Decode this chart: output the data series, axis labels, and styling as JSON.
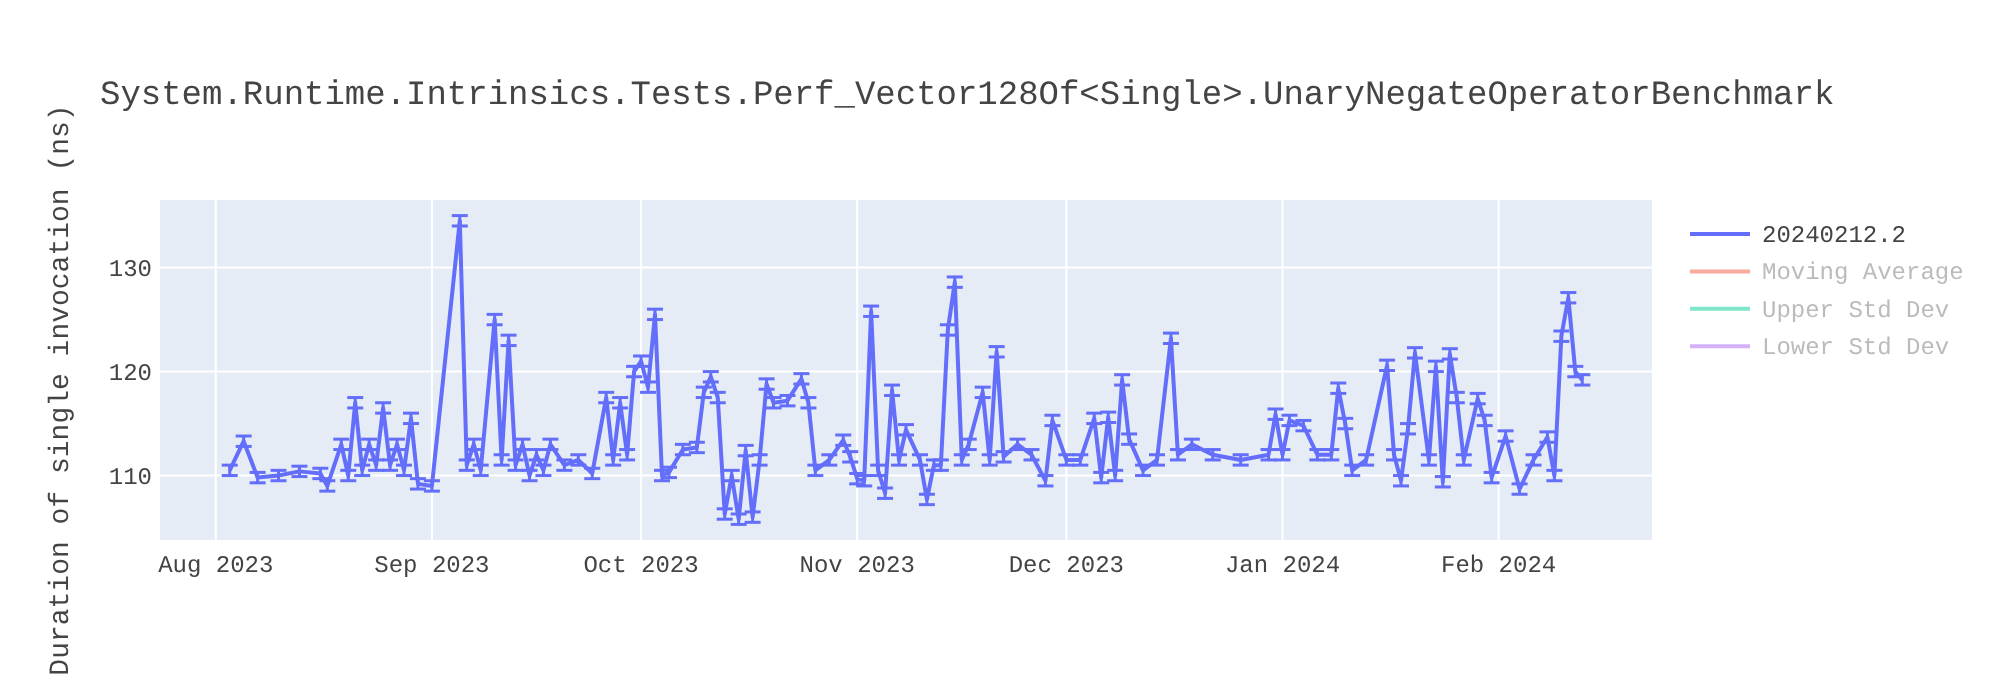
{
  "chart_data": {
    "type": "line",
    "title": "System.Runtime.Intrinsics.Tests.Perf_Vector128Of<Single>.UnaryNegateOperatorBenchmark",
    "ylabel": "Duration of single invocation (ns)",
    "series": [
      {
        "name": "20240212.2",
        "color": "#636efa",
        "x": [
          "2023-08-03",
          "2023-08-05",
          "2023-08-07",
          "2023-08-10",
          "2023-08-13",
          "2023-08-16",
          "2023-08-17",
          "2023-08-19",
          "2023-08-20",
          "2023-08-21",
          "2023-08-22",
          "2023-08-23",
          "2023-08-24",
          "2023-08-25",
          "2023-08-26",
          "2023-08-27",
          "2023-08-28",
          "2023-08-29",
          "2023-08-30",
          "2023-09-01",
          "2023-09-05",
          "2023-09-06",
          "2023-09-07",
          "2023-09-08",
          "2023-09-10",
          "2023-09-11",
          "2023-09-12",
          "2023-09-13",
          "2023-09-14",
          "2023-09-15",
          "2023-09-16",
          "2023-09-17",
          "2023-09-18",
          "2023-09-20",
          "2023-09-22",
          "2023-09-24",
          "2023-09-26",
          "2023-09-27",
          "2023-09-28",
          "2023-09-29",
          "2023-09-30",
          "2023-10-01",
          "2023-10-02",
          "2023-10-03",
          "2023-10-04",
          "2023-10-05",
          "2023-10-07",
          "2023-10-09",
          "2023-10-10",
          "2023-10-11",
          "2023-10-12",
          "2023-10-13",
          "2023-10-14",
          "2023-10-15",
          "2023-10-16",
          "2023-10-17",
          "2023-10-18",
          "2023-10-19",
          "2023-10-20",
          "2023-10-22",
          "2023-10-24",
          "2023-10-25",
          "2023-10-26",
          "2023-10-28",
          "2023-10-30",
          "2023-10-31",
          "2023-11-01",
          "2023-11-02",
          "2023-11-03",
          "2023-11-04",
          "2023-11-05",
          "2023-11-06",
          "2023-11-07",
          "2023-11-08",
          "2023-11-10",
          "2023-11-11",
          "2023-11-12",
          "2023-11-13",
          "2023-11-14",
          "2023-11-15",
          "2023-11-16",
          "2023-11-17",
          "2023-11-19",
          "2023-11-20",
          "2023-11-21",
          "2023-11-22",
          "2023-11-24",
          "2023-11-26",
          "2023-11-28",
          "2023-11-29",
          "2023-12-01",
          "2023-12-03",
          "2023-12-05",
          "2023-12-06",
          "2023-12-07",
          "2023-12-08",
          "2023-12-09",
          "2023-12-10",
          "2023-12-12",
          "2023-12-14",
          "2023-12-16",
          "2023-12-17",
          "2023-12-19",
          "2023-12-22",
          "2023-12-26",
          "2023-12-30",
          "2023-12-31",
          "2024-01-01",
          "2024-01-02",
          "2024-01-04",
          "2024-01-06",
          "2024-01-08",
          "2024-01-09",
          "2024-01-10",
          "2024-01-11",
          "2024-01-13",
          "2024-01-16",
          "2024-01-17",
          "2024-01-18",
          "2024-01-19",
          "2024-01-20",
          "2024-01-22",
          "2024-01-23",
          "2024-01-24",
          "2024-01-25",
          "2024-01-26",
          "2024-01-27",
          "2024-01-29",
          "2024-01-30",
          "2024-01-31",
          "2024-02-02",
          "2024-02-04",
          "2024-02-06",
          "2024-02-08",
          "2024-02-09",
          "2024-02-10",
          "2024-02-11",
          "2024-02-12",
          "2024-02-13"
        ],
        "values": [
          110.5,
          113.3,
          109.8,
          110,
          110.4,
          110.2,
          109,
          113,
          110,
          117,
          110.5,
          113,
          111,
          116.5,
          111,
          113,
          110.5,
          115.5,
          109.2,
          109,
          134.5,
          111,
          113,
          110.5,
          125,
          111.5,
          123,
          111,
          113,
          110,
          112,
          110.5,
          113,
          111,
          111.5,
          110.2,
          117.5,
          111.5,
          117,
          112,
          120,
          121,
          118.5,
          125.5,
          110,
          110.3,
          112.5,
          112.7,
          118,
          119.5,
          117.5,
          106.3,
          110,
          105.8,
          112.4,
          106,
          111.5,
          118.8,
          117,
          117.2,
          119.3,
          117,
          110.5,
          111.5,
          113.4,
          111.8,
          109.7,
          109.5,
          125.8,
          110.5,
          108.3,
          118.2,
          111.5,
          114.4,
          111.5,
          107.7,
          111,
          111,
          124,
          128.6,
          111.5,
          113,
          118,
          111.5,
          121.9,
          111.8,
          113,
          112,
          109.5,
          115.3,
          111.5,
          111.5,
          115.5,
          109.8,
          115.6,
          110,
          119.2,
          113.5,
          110.5,
          111.5,
          123.2,
          112,
          113,
          112,
          111.5,
          112,
          115.9,
          112,
          115.3,
          114.8,
          112,
          112,
          118.4,
          115,
          110.5,
          111.5,
          120.6,
          112,
          109.5,
          114.5,
          121.8,
          111.5,
          120.5,
          109.4,
          121.7,
          117.5,
          111.5,
          117.4,
          115.3,
          109.8,
          113.8,
          108.7,
          111.5,
          113.7,
          110,
          123.4,
          127.1,
          120,
          119.2
        ],
        "errors": [
          0.5,
          0.5,
          0.5,
          0.5,
          0.5,
          0.5,
          0.5,
          0.5,
          0.5,
          0.5,
          0.5,
          0.5,
          0.5,
          0.5,
          0.5,
          0.5,
          0.5,
          0.5,
          0.5,
          0.5,
          0.5,
          0.5,
          0.5,
          0.5,
          0.5,
          0.5,
          0.5,
          0.5,
          0.5,
          0.5,
          0.5,
          0.5,
          0.5,
          0.5,
          0.5,
          0.5,
          0.5,
          0.5,
          0.5,
          0.5,
          0.5,
          0.5,
          0.5,
          0.5,
          0.5,
          0.5,
          0.5,
          0.5,
          0.5,
          0.5,
          0.5,
          0.5,
          0.5,
          0.5,
          0.5,
          0.5,
          0.5,
          0.5,
          0.5,
          0.5,
          0.5,
          0.5,
          0.5,
          0.5,
          0.5,
          0.5,
          0.5,
          0.5,
          0.5,
          0.5,
          0.5,
          0.5,
          0.5,
          0.5,
          0.5,
          0.5,
          0.5,
          0.5,
          0.5,
          0.5,
          0.5,
          0.5,
          0.5,
          0.5,
          0.5,
          0.5,
          0.5,
          0.5,
          0.5,
          0.5,
          0.5,
          0.5,
          0.5,
          0.5,
          0.5,
          0.5,
          0.5,
          0.5,
          0.5,
          0.5,
          0.5,
          0.5,
          0.5,
          0.5,
          0.5,
          0.5,
          0.5,
          0.5,
          0.5,
          0.5,
          0.5,
          0.5,
          0.5,
          0.5,
          0.5,
          0.5,
          0.5,
          0.5,
          0.5,
          0.5,
          0.5,
          0.5,
          0.5,
          0.5,
          0.5,
          0.5,
          0.5,
          0.5,
          0.5,
          0.5,
          0.5,
          0.5,
          0.5,
          0.5,
          0.5,
          0.5,
          0.5,
          0.5,
          0.5
        ]
      },
      {
        "name": "Moving Average",
        "color": "#f7aa9d"
      },
      {
        "name": "Upper Std Dev",
        "color": "#7fe5ca"
      },
      {
        "name": "Lower Std Dev",
        "color": "#d5b1fc"
      }
    ],
    "xlim": [
      "2023-07-24",
      "2024-02-23"
    ],
    "xticks": [
      {
        "value": "2023-08-01",
        "label": "Aug 2023"
      },
      {
        "value": "2023-09-01",
        "label": "Sep 2023"
      },
      {
        "value": "2023-10-01",
        "label": "Oct 2023"
      },
      {
        "value": "2023-11-01",
        "label": "Nov 2023"
      },
      {
        "value": "2023-12-01",
        "label": "Dec 2023"
      },
      {
        "value": "2024-01-01",
        "label": "Jan 2024"
      },
      {
        "value": "2024-02-01",
        "label": "Feb 2024"
      }
    ],
    "ylim": [
      103.8,
      136.5
    ],
    "yticks": [
      110,
      120,
      130
    ],
    "grid": true,
    "legend": "right",
    "marker": "none",
    "line_style": "solid"
  }
}
